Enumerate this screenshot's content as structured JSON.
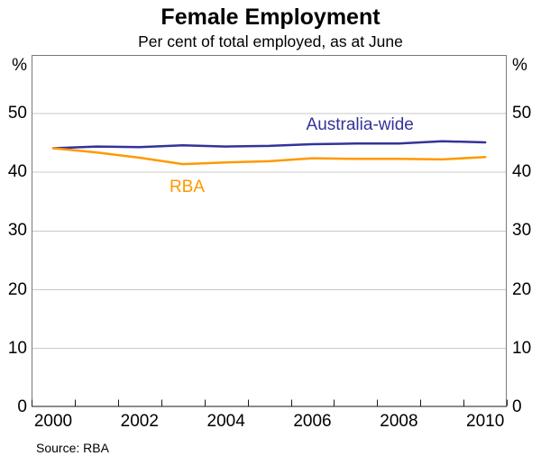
{
  "chart_data": {
    "type": "line",
    "title": "Female Employment",
    "subtitle": "Per cent of total employed, as at June",
    "unit_label": "%",
    "source": "Source: RBA",
    "x": [
      2000,
      2001,
      2002,
      2003,
      2004,
      2005,
      2006,
      2007,
      2008,
      2009,
      2010
    ],
    "xtick_labels": [
      2000,
      2002,
      2004,
      2006,
      2008,
      2010
    ],
    "yticks": [
      0,
      10,
      20,
      30,
      40,
      50
    ],
    "ylim": [
      0,
      60
    ],
    "grid": "horizontal-light-gray",
    "legend_position": "inline-labels",
    "colors": {
      "australia_wide": "#333399",
      "rba": "#ff9900",
      "gridline": "#c9c9c9",
      "frame": "#7a7a7a",
      "axis": "#1a1a1a"
    },
    "series": [
      {
        "name": "Australia-wide",
        "color": "#333399",
        "values": [
          44.1,
          44.4,
          44.3,
          44.6,
          44.4,
          44.5,
          44.8,
          44.9,
          44.9,
          45.3,
          45.1
        ],
        "label_anchor": {
          "x": 2007.1,
          "y": 48.1
        }
      },
      {
        "name": "RBA",
        "color": "#ff9900",
        "values": [
          44.1,
          43.4,
          42.5,
          41.4,
          41.7,
          41.9,
          42.4,
          42.3,
          42.3,
          42.2,
          42.6
        ],
        "label_anchor": {
          "x": 2003.1,
          "y": 37.5
        }
      }
    ]
  }
}
